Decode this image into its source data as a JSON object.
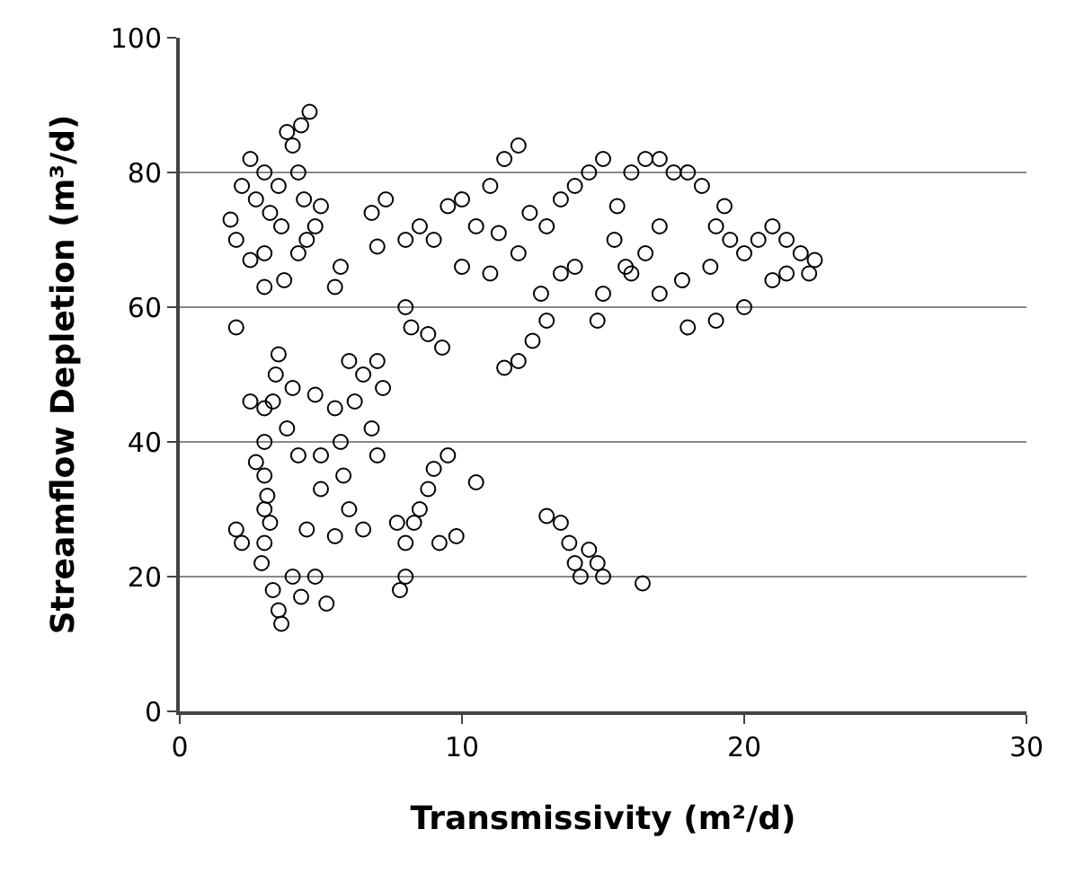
{
  "chart_data": {
    "type": "scatter",
    "xlabel": "Transmissivity (m²/d)",
    "ylabel": "Streamflow Depletion (m³/d)",
    "xlim": [
      0,
      30
    ],
    "xticks": [
      0,
      10,
      20,
      30
    ],
    "ylim": [
      0,
      100
    ],
    "yticks": [
      0,
      20,
      40,
      60,
      80,
      100
    ],
    "grid": "y",
    "marker": "circle",
    "legend": false,
    "series": [
      {
        "color": "#000000",
        "x": [
          1.8,
          2,
          2.2,
          2.5,
          2.7,
          3,
          3.2,
          3.5,
          3,
          2.5,
          3.8,
          4,
          4.3,
          4.6,
          4.2,
          4.4,
          3.6,
          4.8,
          5,
          3,
          3.7,
          4.2,
          2,
          5.5,
          5.7,
          4.5,
          3,
          3,
          3,
          3.1,
          3,
          3.2,
          3,
          2.9,
          3.3,
          3.5,
          3.6,
          3.5,
          3.4,
          3.3,
          3.8,
          2,
          2.2,
          4,
          4.3,
          4.8,
          5.2,
          4.5,
          4.2,
          2.5,
          2.7,
          4,
          4.8,
          5,
          5.8,
          5.5,
          5.7,
          6,
          6.5,
          6.2,
          7,
          7.2,
          6.8,
          6,
          6.5,
          5.5,
          7,
          5,
          7.8,
          8,
          8,
          8.3,
          8.8,
          9,
          9.5,
          8.5,
          9.8,
          10.5,
          9.2,
          7.7,
          8,
          8.2,
          8.8,
          9.3,
          8,
          8.5,
          9,
          9.5,
          7.3,
          6.8,
          7,
          10,
          10.5,
          11,
          11.5,
          12,
          11.3,
          12.4,
          12,
          13,
          13.5,
          12.8,
          13,
          12.5,
          14,
          14.5,
          15,
          15.5,
          15.4,
          14,
          15,
          16,
          16.5,
          17,
          17.5,
          18,
          18.5,
          17,
          16.5,
          16,
          17,
          18,
          17.8,
          18.8,
          19,
          19.3,
          19.5,
          20,
          20.5,
          21,
          21.5,
          22,
          22.5,
          21,
          20,
          19,
          21.5,
          22.3,
          11.5,
          12,
          11,
          14.8,
          10,
          13.5,
          15.8,
          13,
          13.5,
          13.8,
          14,
          14.5,
          14.8,
          14.2,
          15,
          16.4
        ],
        "values": [
          73,
          70,
          78,
          82,
          76,
          80,
          74,
          78,
          68,
          67,
          86,
          84,
          87,
          89,
          80,
          76,
          72,
          72,
          75,
          63,
          64,
          68,
          57,
          63,
          66,
          70,
          45,
          40,
          35,
          32,
          30,
          28,
          25,
          22,
          18,
          15,
          13,
          53,
          50,
          46,
          42,
          27,
          25,
          20,
          17,
          20,
          16,
          27,
          38,
          46,
          37,
          48,
          47,
          33,
          35,
          45,
          40,
          52,
          50,
          46,
          52,
          48,
          42,
          30,
          27,
          26,
          38,
          38,
          18,
          20,
          25,
          28,
          33,
          36,
          38,
          30,
          26,
          34,
          25,
          28,
          60,
          57,
          56,
          54,
          70,
          72,
          70,
          75,
          76,
          74,
          69,
          76,
          72,
          78,
          82,
          84,
          71,
          74,
          68,
          72,
          65,
          62,
          58,
          55,
          78,
          80,
          82,
          75,
          70,
          66,
          62,
          80,
          82,
          82,
          80,
          80,
          78,
          72,
          68,
          65,
          62,
          57,
          64,
          66,
          72,
          75,
          70,
          68,
          70,
          72,
          70,
          68,
          67,
          64,
          60,
          58,
          65,
          65,
          51,
          52,
          65,
          58,
          66,
          76,
          66,
          29,
          28,
          25,
          22,
          24,
          22,
          20,
          20,
          19
        ]
      }
    ]
  }
}
